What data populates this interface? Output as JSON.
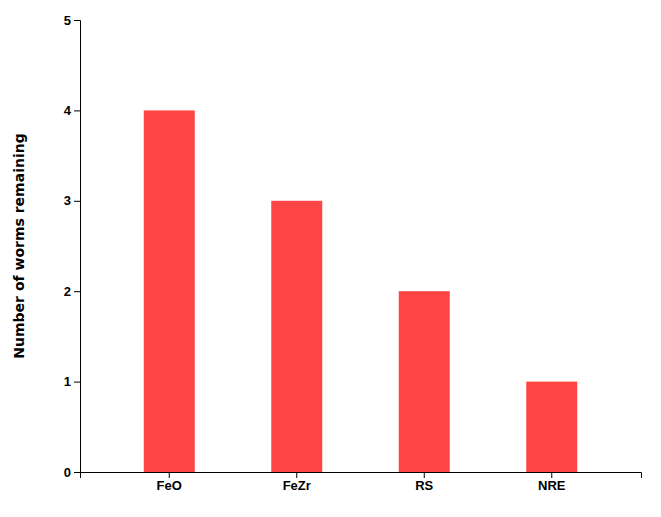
{
  "chart_data": {
    "type": "bar",
    "categories": [
      "FeO",
      "FeZr",
      "RS",
      "NRE"
    ],
    "values": [
      4,
      3,
      2,
      1
    ],
    "color": "#FF4444",
    "ylabel": "Number of worms remaining",
    "ylim": [
      0,
      5
    ],
    "yticks": [
      0,
      1,
      2,
      3,
      4,
      5
    ]
  }
}
